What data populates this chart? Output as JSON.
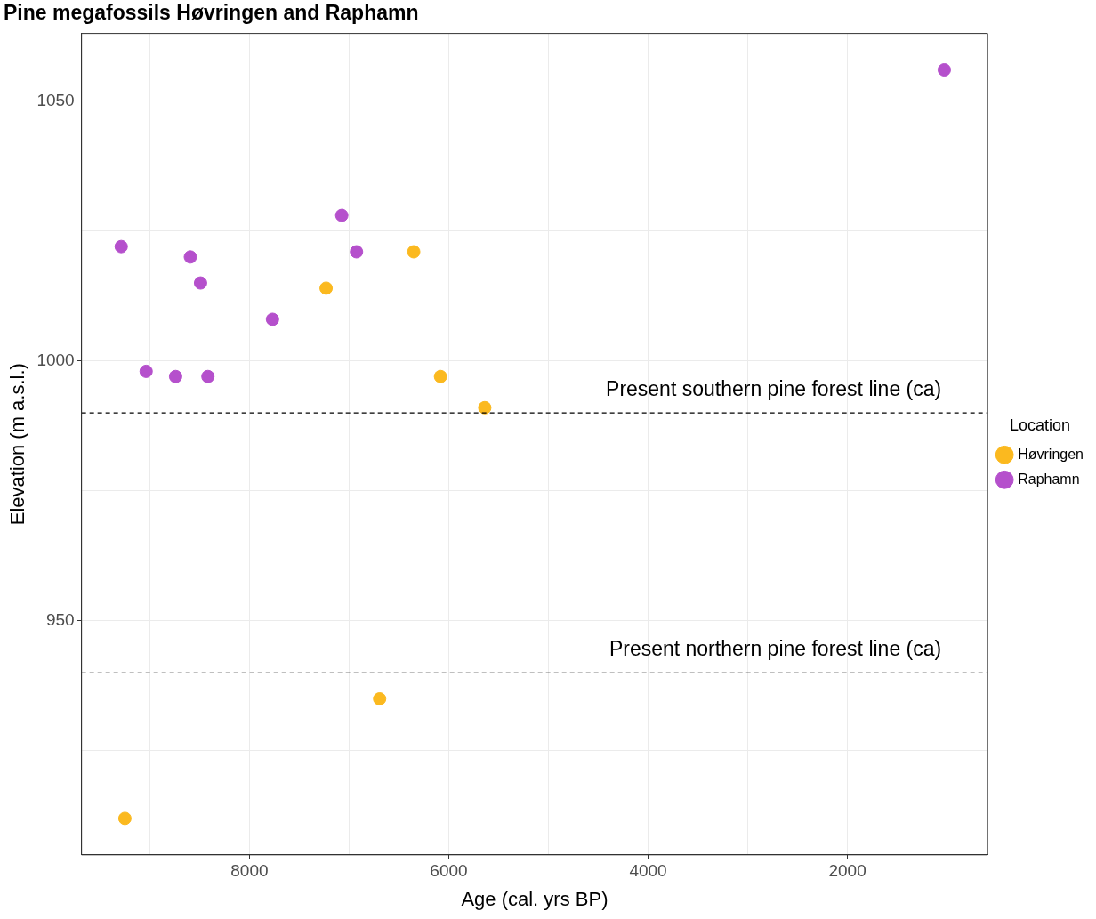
{
  "chart_data": {
    "type": "scatter",
    "title": "Pine megafossils Høvringen and Raphamn",
    "xlabel": "Age (cal. yrs BP)",
    "ylabel": "Elevation (m a.s.l.)",
    "legend_title": "Location",
    "series": [
      {
        "name": "Høvringen",
        "color": "#fbb91f",
        "x": [
          9250,
          7231,
          6694,
          6352,
          6083,
          5639
        ],
        "values": [
          912,
          1014,
          935,
          1021,
          997,
          991
        ]
      },
      {
        "name": "Raphamn",
        "color": "#b550cc",
        "x": [
          9287,
          9037,
          8741,
          8593,
          8491,
          8417,
          7769,
          7074,
          6926,
          1028
        ],
        "values": [
          1022,
          998,
          997,
          1020,
          1015,
          997,
          1008,
          1028,
          1021,
          1056
        ]
      }
    ],
    "xlim": [
      9685,
      593
    ],
    "ylim": [
      905,
      1063
    ],
    "xticks": [
      {
        "value": 9000,
        "label": null
      },
      8000,
      {
        "value": 7000,
        "label": null
      },
      6000,
      {
        "value": 5000,
        "label": null
      },
      4000,
      {
        "value": 3000,
        "label": null
      },
      2000,
      {
        "value": 1000,
        "label": null
      }
    ],
    "yticks": [
      {
        "value": 925,
        "label": null
      },
      950,
      {
        "value": 975,
        "label": null
      },
      1000,
      {
        "value": 1025,
        "label": null
      },
      1050
    ],
    "ref_lines": [
      {
        "axis": "y",
        "value": 990,
        "label": "Present southern pine forest line (ca)",
        "line_style": "dashed"
      },
      {
        "axis": "y",
        "value": 940,
        "label": "Present northern pine forest line (ca)",
        "line_style": "dashed"
      }
    ],
    "grid": true,
    "legend": "right",
    "marker": "circle"
  }
}
